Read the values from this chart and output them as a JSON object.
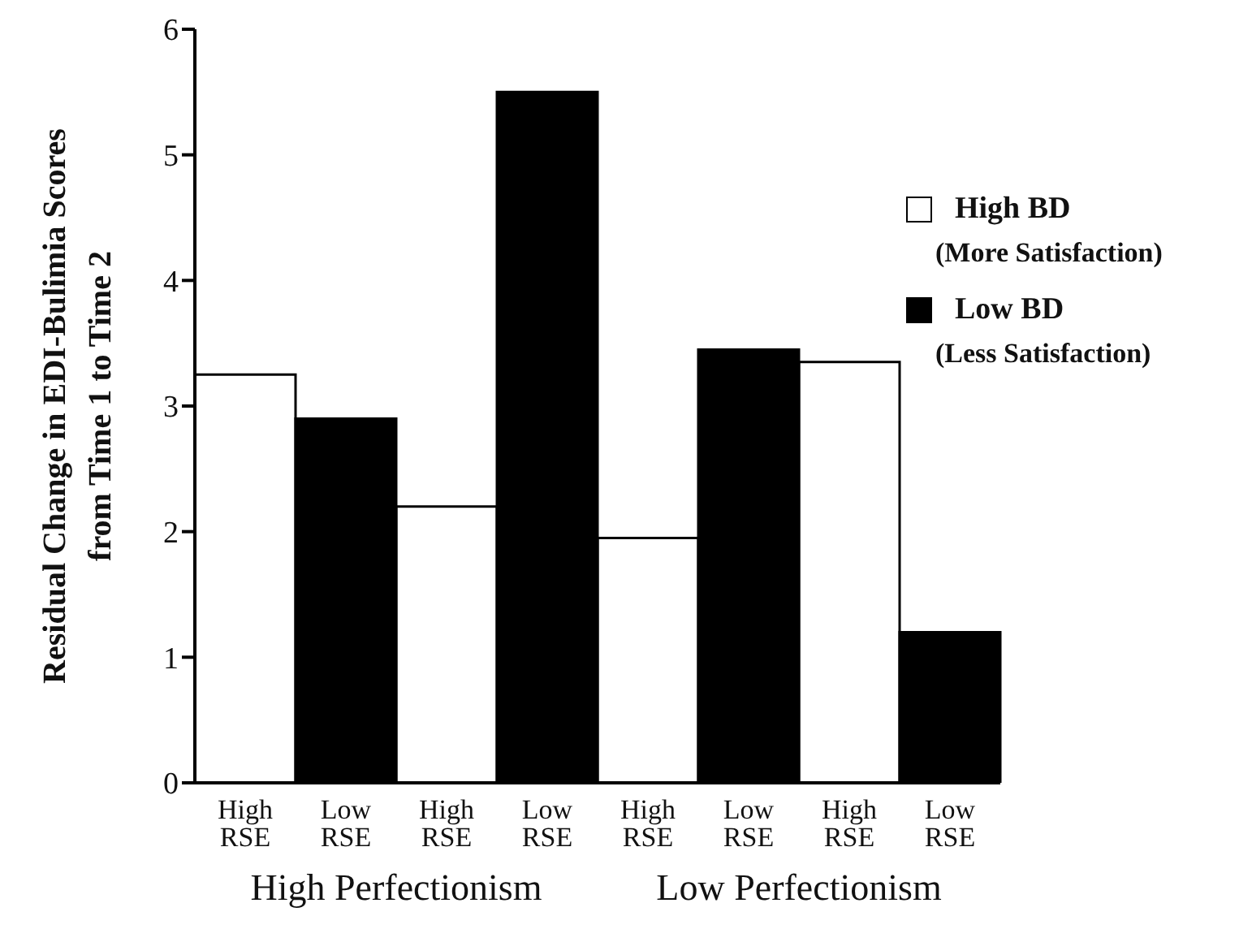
{
  "chart_data": {
    "type": "bar",
    "stacked": true,
    "ylabel": "Residual Change in EDI-Bulimia Scores\nfrom Time 1 to Time 2",
    "categories": [
      "High RSE",
      "Low RSE",
      "High RSE",
      "Low RSE",
      "High RSE",
      "Low RSE",
      "High RSE",
      "Low RSE"
    ],
    "series": [
      {
        "name": "High BD (More Satisfaction)",
        "color": "#ffffff",
        "values": [
          3.25,
          null,
          2.2,
          null,
          1.95,
          null,
          3.35,
          null
        ]
      },
      {
        "name": "Low BD (Less Satisfaction)",
        "color": "#000000",
        "values": [
          null,
          2.9,
          null,
          5.5,
          null,
          3.45,
          null,
          1.2
        ]
      }
    ],
    "ylim": [
      0,
      6
    ],
    "yticks": [
      0,
      1,
      2,
      3,
      4,
      5,
      6
    ],
    "grid": false,
    "legend": "top right",
    "annotations": [
      "High Perfectionism",
      "Low Perfectionism"
    ]
  }
}
